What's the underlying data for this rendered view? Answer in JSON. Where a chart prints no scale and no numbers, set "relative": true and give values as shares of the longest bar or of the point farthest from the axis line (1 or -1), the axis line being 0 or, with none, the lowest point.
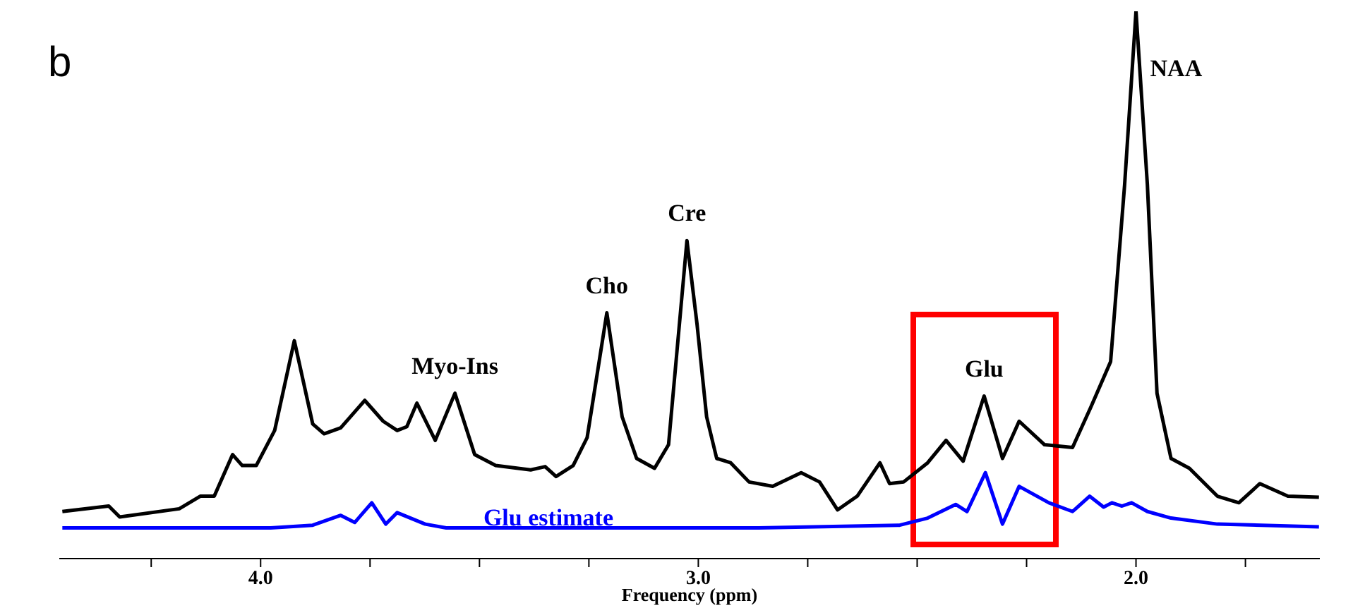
{
  "chart_data": {
    "type": "line",
    "title": "b",
    "xlabel": "Frequency (ppm)",
    "relative": true,
    "xlim": [
      4.46,
      1.58
    ],
    "xticks": [
      {
        "value": 4.25,
        "label": null
      },
      {
        "value": 4.0,
        "label": "4.0"
      },
      {
        "value": 3.75,
        "label": null
      },
      {
        "value": 3.5,
        "label": null
      },
      {
        "value": 3.25,
        "label": null
      },
      {
        "value": 3.0,
        "label": "3.0"
      },
      {
        "value": 2.75,
        "label": null
      },
      {
        "value": 2.5,
        "label": null
      },
      {
        "value": 2.25,
        "label": null
      },
      {
        "value": 2.0,
        "label": "2.0"
      },
      {
        "value": 1.75,
        "label": null
      }
    ],
    "marker": "none",
    "line_style": "solid",
    "series": [
      {
        "color": "#000000",
        "x": [
          4.453,
          4.347,
          4.322,
          4.186,
          4.138,
          4.106,
          4.064,
          4.042,
          4.01,
          3.968,
          3.923,
          3.881,
          3.855,
          3.817,
          3.762,
          3.72,
          3.688,
          3.666,
          3.643,
          3.601,
          3.556,
          3.511,
          3.463,
          3.383,
          3.35,
          3.325,
          3.286,
          3.254,
          3.209,
          3.174,
          3.141,
          3.1,
          3.068,
          3.026,
          3.003,
          2.981,
          2.958,
          2.926,
          2.884,
          2.83,
          2.765,
          2.723,
          2.682,
          2.637,
          2.585,
          2.563,
          2.531,
          2.476,
          2.434,
          2.395,
          2.347,
          2.305,
          2.267,
          2.209,
          2.145,
          2.103,
          2.058,
          2.026,
          2.0,
          1.974,
          1.952,
          1.92,
          1.878,
          1.814,
          1.765,
          1.717,
          1.653,
          1.582
        ],
        "values": [
          0.086,
          0.096,
          0.076,
          0.091,
          0.114,
          0.114,
          0.19,
          0.17,
          0.17,
          0.234,
          0.398,
          0.246,
          0.228,
          0.239,
          0.289,
          0.251,
          0.234,
          0.241,
          0.284,
          0.216,
          0.302,
          0.19,
          0.17,
          0.162,
          0.168,
          0.15,
          0.17,
          0.221,
          0.449,
          0.259,
          0.183,
          0.165,
          0.208,
          0.581,
          0.429,
          0.259,
          0.183,
          0.175,
          0.14,
          0.132,
          0.157,
          0.14,
          0.089,
          0.114,
          0.175,
          0.137,
          0.14,
          0.175,
          0.216,
          0.178,
          0.297,
          0.183,
          0.251,
          0.208,
          0.203,
          0.277,
          0.36,
          0.683,
          1.0,
          0.683,
          0.302,
          0.183,
          0.165,
          0.114,
          0.102,
          0.137,
          0.114,
          0.112
        ]
      },
      {
        "name": "Glu estimate",
        "color": "#0000ff",
        "x": [
          4.453,
          3.977,
          3.881,
          3.817,
          3.785,
          3.746,
          3.714,
          3.688,
          3.624,
          3.576,
          3.109,
          2.862,
          2.54,
          2.476,
          2.412,
          2.386,
          2.344,
          2.305,
          2.267,
          2.199,
          2.145,
          2.106,
          2.074,
          2.055,
          2.032,
          2.01,
          1.974,
          1.92,
          1.814,
          1.582
        ],
        "values": [
          0.056,
          0.056,
          0.061,
          0.079,
          0.066,
          0.102,
          0.063,
          0.084,
          0.063,
          0.056,
          0.056,
          0.056,
          0.061,
          0.074,
          0.099,
          0.086,
          0.157,
          0.063,
          0.132,
          0.102,
          0.086,
          0.114,
          0.094,
          0.102,
          0.096,
          0.102,
          0.086,
          0.074,
          0.063,
          0.058
        ]
      }
    ],
    "annotations": [
      {
        "text": "Myo-Ins",
        "x": 3.556,
        "y": 0.302
      },
      {
        "text": "Cho",
        "x": 3.209,
        "y": 0.449
      },
      {
        "text": "Cre",
        "x": 3.026,
        "y": 0.581
      },
      {
        "text": "Glu",
        "x": 2.347,
        "y": 0.297
      },
      {
        "text": "NAA",
        "x": 2.0,
        "y": 1.0
      }
    ]
  }
}
